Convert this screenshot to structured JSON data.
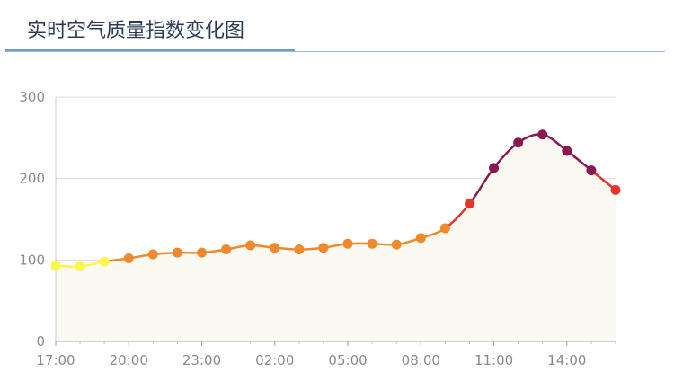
{
  "header": {
    "title": "实时空气质量指数变化图"
  },
  "chart_data": {
    "type": "area",
    "title": "实时空气质量指数变化图",
    "xlabel": "",
    "ylabel": "",
    "x_tick_labels": [
      "17:00",
      "20:00",
      "23:00",
      "02:00",
      "05:00",
      "08:00",
      "11:00",
      "14:00"
    ],
    "y_ticks": [
      0,
      100,
      200,
      300
    ],
    "ylim": [
      0,
      300
    ],
    "grid": "horizontal",
    "legend": "none",
    "series": [
      {
        "x": [
          "17:00",
          "18:00",
          "19:00",
          "20:00",
          "21:00",
          "22:00",
          "23:00",
          "00:00",
          "01:00",
          "02:00",
          "03:00",
          "04:00",
          "05:00",
          "06:00",
          "07:00",
          "08:00",
          "09:00",
          "10:00",
          "11:00",
          "12:00",
          "13:00",
          "14:00",
          "15:00",
          "16:00"
        ],
        "values": [
          93,
          92,
          98,
          102,
          107,
          109,
          109,
          113,
          118,
          115,
          113,
          115,
          120,
          120,
          119,
          127,
          139,
          169,
          213,
          244,
          254,
          234,
          210,
          186
        ]
      }
    ],
    "color_scale": [
      {
        "max": 50,
        "color": "#7cdc4f"
      },
      {
        "max": 100,
        "color": "#fbf74a"
      },
      {
        "max": 150,
        "color": "#f0882c"
      },
      {
        "max": 200,
        "color": "#e8322a"
      },
      {
        "max": 300,
        "color": "#8b1950"
      },
      {
        "max": 500,
        "color": "#6a0f2a"
      }
    ],
    "area_fill": "#fafaf3"
  }
}
